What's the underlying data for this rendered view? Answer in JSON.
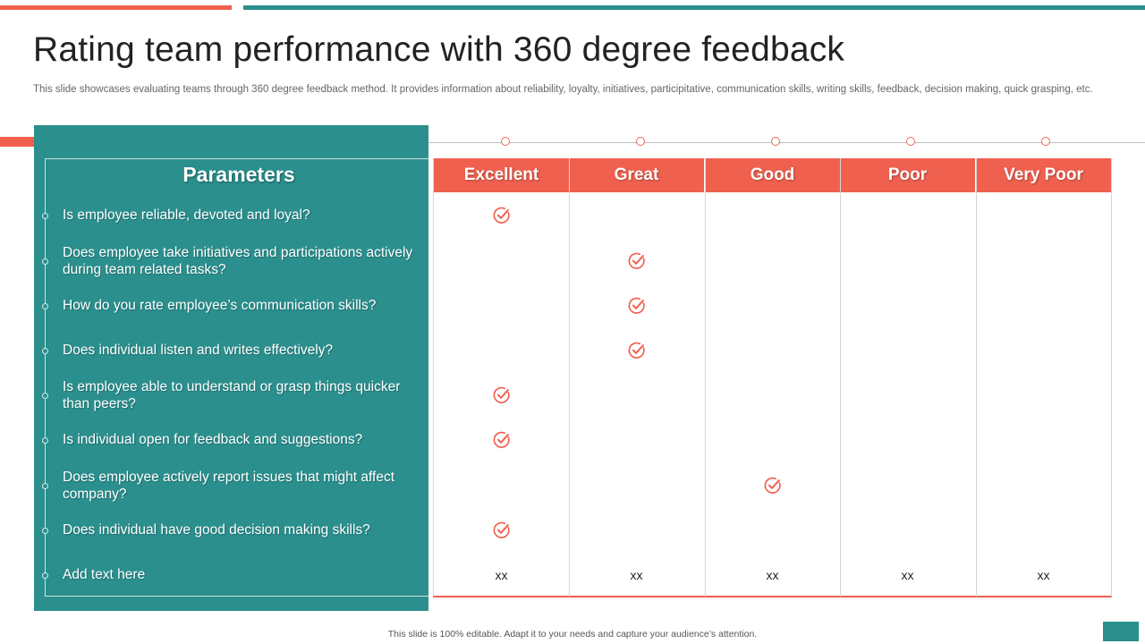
{
  "title": "Rating team performance with 360 degree feedback",
  "subtitle": "This slide showcases evaluating teams through 360 degree feedback method. It provides information about reliability, loyalty,  initiatives, participitative, communication skills, writing skills, feedback, decision making, quick grasping, etc.",
  "parameters_header": "Parameters",
  "columns": [
    "Excellent",
    "Great",
    "Good",
    "Poor",
    "Very Poor"
  ],
  "parameters": [
    {
      "text": "Is employee reliable, devoted and loyal?",
      "rating": "Excellent"
    },
    {
      "text": "Does employee take initiatives and participations actively during team related tasks?",
      "rating": "Great"
    },
    {
      "text": "How do you rate employee’s communication skills?",
      "rating": "Great"
    },
    {
      "text": "Does individual listen and writes effectively?",
      "rating": "Great"
    },
    {
      "text": "Is employee able to understand  or grasp things quicker than peers?",
      "rating": "Excellent"
    },
    {
      "text": "Is individual open for feedback and suggestions?",
      "rating": "Excellent"
    },
    {
      "text": "Does employee actively report issues that might affect company?",
      "rating": "Good"
    },
    {
      "text": "Does individual have good decision making skills?",
      "rating": "Excellent"
    },
    {
      "text": "Add text here",
      "rating": null
    }
  ],
  "placeholder_row": [
    "xx",
    "xx",
    "xx",
    "xx",
    "xx"
  ],
  "check_icon": "check-circle-icon",
  "footer": "This slide is 100% editable.  Adapt it to your needs and capture your audience’s attention.",
  "colors": {
    "teal": "#2a8f8d",
    "coral": "#f0604f"
  }
}
